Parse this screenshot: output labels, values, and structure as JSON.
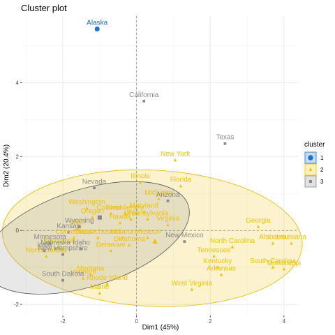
{
  "chart_data": {
    "type": "scatter",
    "title": "Cluster plot",
    "xlabel": "Dim1 (45%)",
    "ylabel": "Dim2 (20.4%)",
    "xlim": [
      -3.1,
      4.4
    ],
    "ylim": [
      -2.3,
      5.8
    ],
    "x_ticks": [
      "-2",
      "0",
      "2",
      "4"
    ],
    "x_tick_values": [
      -2,
      0,
      2,
      4
    ],
    "y_ticks": [
      "-2",
      "0",
      "2",
      "4"
    ],
    "y_tick_values": [
      -2,
      0,
      2,
      4
    ],
    "grid": true,
    "legend": {
      "title": "cluster",
      "placement": "right",
      "entries": [
        "1",
        "2",
        "3"
      ]
    },
    "colors": {
      "1": "#1c72c4",
      "2": "#f0c20a",
      "3": "#8a8a8a"
    },
    "centroids": [
      {
        "cluster": "2",
        "x": 0.5,
        "y": -0.3
      },
      {
        "cluster": "3",
        "x": -1.0,
        "y": 0.35
      }
    ],
    "series": [
      {
        "name": "1",
        "points": [
          {
            "label": "Alaska",
            "x": -1.07,
            "y": 5.45
          }
        ]
      },
      {
        "name": "2",
        "points": [
          {
            "label": "New York",
            "x": 1.05,
            "y": 1.9
          },
          {
            "label": "Illinois",
            "x": 0.1,
            "y": 1.3
          },
          {
            "label": "Florida",
            "x": 1.2,
            "y": 1.2
          },
          {
            "label": "Washington",
            "x": -1.35,
            "y": 0.6
          },
          {
            "label": "Colorado",
            "x": -0.7,
            "y": 0.45
          },
          {
            "label": "Michigan",
            "x": 0.6,
            "y": 0.85
          },
          {
            "label": "Oregon",
            "x": -1.2,
            "y": 0.35
          },
          {
            "label": "Maryland",
            "x": 0.2,
            "y": 0.5
          },
          {
            "label": "New Jersey",
            "x": -0.3,
            "y": 0.45
          },
          {
            "label": "Pennsylvania",
            "x": 0.3,
            "y": 0.3
          },
          {
            "label": "Virginia",
            "x": 0.85,
            "y": 0.15
          },
          {
            "label": "Hawaii",
            "x": -0.45,
            "y": 0.2
          },
          {
            "label": "Ohio",
            "x": -0.15,
            "y": 0.3
          },
          {
            "label": "Utah",
            "x": -1.6,
            "y": 0.05
          },
          {
            "label": "Connecticut",
            "x": -1.7,
            "y": -0.2
          },
          {
            "label": "Massachusetts",
            "x": -1.05,
            "y": -0.2
          },
          {
            "label": "Indiana",
            "x": -0.4,
            "y": -0.2
          },
          {
            "label": "Missouri",
            "x": 0.3,
            "y": -0.2
          },
          {
            "label": "Delaware",
            "x": -0.7,
            "y": -0.55
          },
          {
            "label": "Oklahoma",
            "x": -0.2,
            "y": -0.4
          },
          {
            "label": "Georgia",
            "x": 3.3,
            "y": 0.1
          },
          {
            "label": "Alabama",
            "x": 3.7,
            "y": -0.35
          },
          {
            "label": "Louisiana",
            "x": 4.2,
            "y": -0.35
          },
          {
            "label": "North Carolina",
            "x": 2.6,
            "y": -0.45
          },
          {
            "label": "Tennessee",
            "x": 2.1,
            "y": -0.7
          },
          {
            "label": "Kentucky",
            "x": 2.2,
            "y": -1.0
          },
          {
            "label": "South Carolina",
            "x": 3.7,
            "y": -1.0
          },
          {
            "label": "Mississippi",
            "x": 4.0,
            "y": -1.05
          },
          {
            "label": "Arkansas",
            "x": 2.3,
            "y": -1.2
          },
          {
            "label": "West Virginia",
            "x": 1.5,
            "y": -1.6
          },
          {
            "label": "North Dakota",
            "x": -2.45,
            "y": -0.7
          },
          {
            "label": "Vermont",
            "x": -1.45,
            "y": -1.3
          },
          {
            "label": "Rhode Island",
            "x": -0.8,
            "y": -1.45
          },
          {
            "label": "Maine",
            "x": -1.0,
            "y": -1.7
          },
          {
            "label": "Wisconsin",
            "x": -2.1,
            "y": -0.45
          },
          {
            "label": "Montana",
            "x": -1.25,
            "y": -1.2
          }
        ]
      },
      {
        "name": "3",
        "points": [
          {
            "label": "California",
            "x": 0.2,
            "y": 3.5
          },
          {
            "label": "Texas",
            "x": 2.4,
            "y": 2.35
          },
          {
            "label": "Nevada",
            "x": -1.15,
            "y": 1.15
          },
          {
            "label": "Arizona",
            "x": 0.85,
            "y": 0.8
          },
          {
            "label": "New Mexico",
            "x": 1.3,
            "y": -0.3
          },
          {
            "label": "Wyoming",
            "x": -1.55,
            "y": 0.1
          },
          {
            "label": "Kansas",
            "x": -1.85,
            "y": -0.05
          },
          {
            "label": "Minnesota",
            "x": -2.35,
            "y": -0.35
          },
          {
            "label": "Nebraska",
            "x": -2.2,
            "y": -0.5
          },
          {
            "label": "Iowa",
            "x": -2.5,
            "y": -0.55
          },
          {
            "label": "Idaho",
            "x": -1.5,
            "y": -0.5
          },
          {
            "label": "New Hampshire",
            "x": -2.0,
            "y": -0.65
          },
          {
            "label": "South Dakota",
            "x": -2.0,
            "y": -1.35
          }
        ]
      }
    ]
  }
}
